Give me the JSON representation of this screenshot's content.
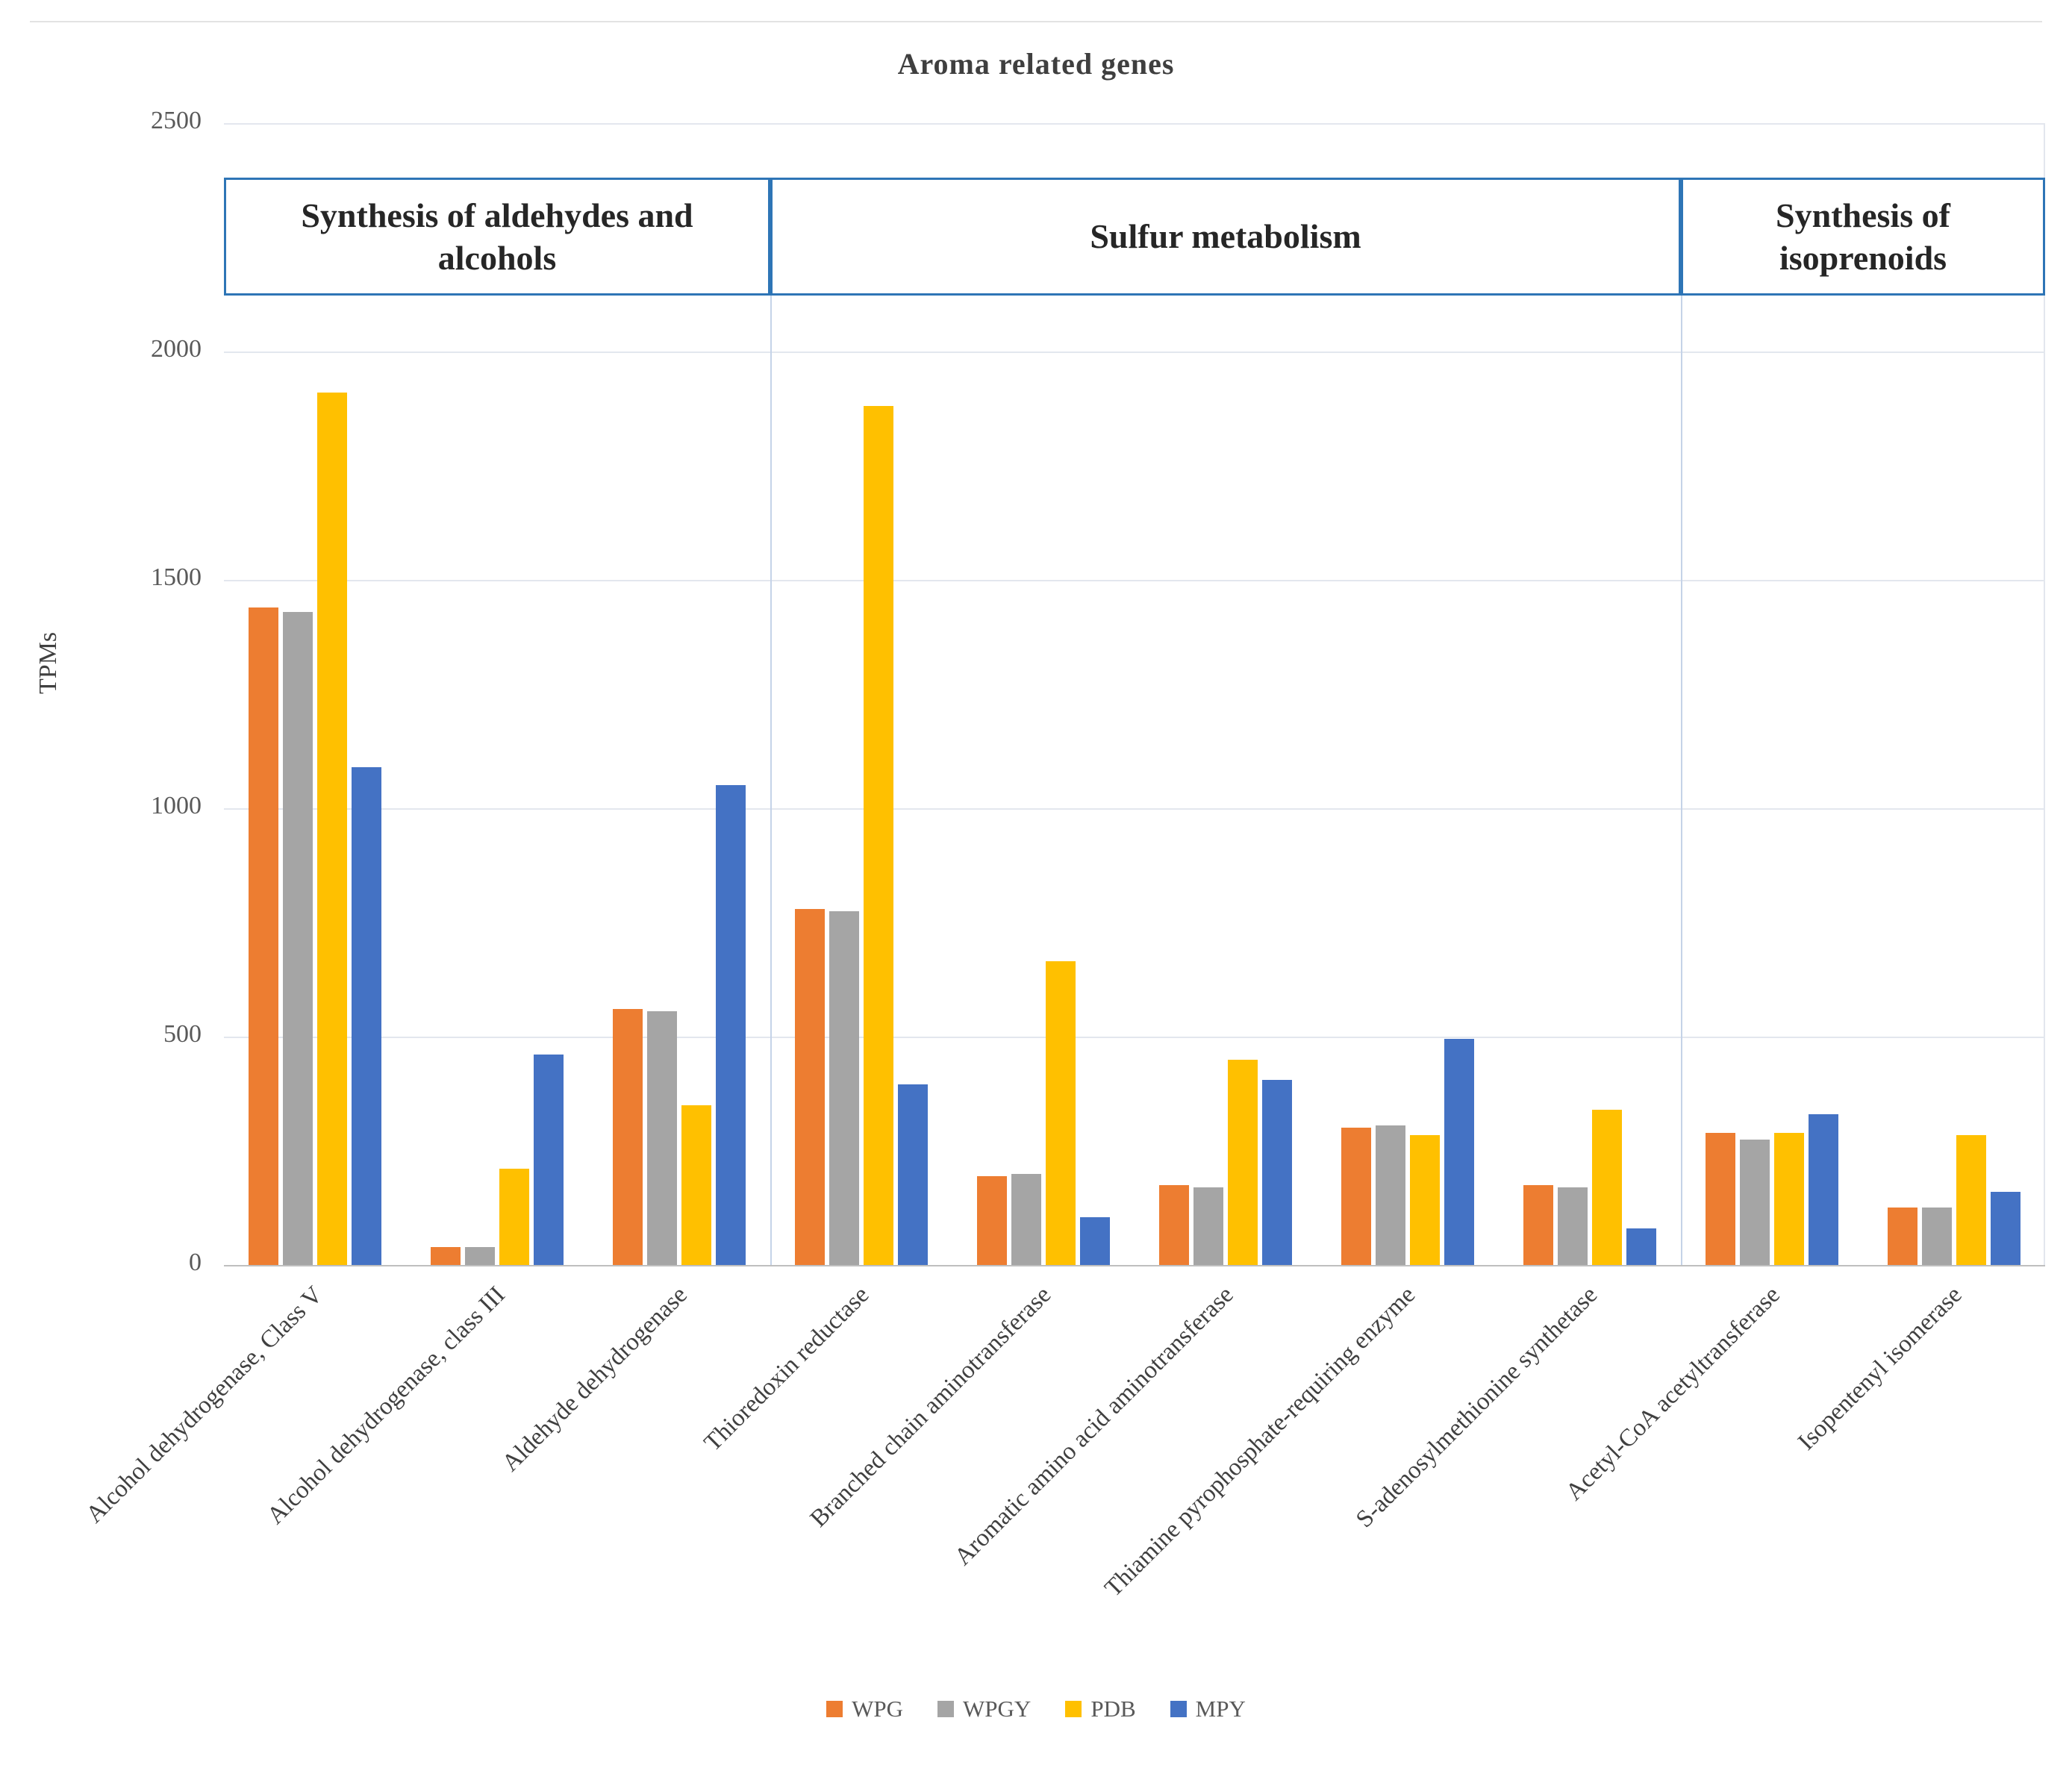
{
  "title": "Aroma related genes",
  "y_axis_title": "TPMs",
  "sections": [
    {
      "label": "Synthesis of aldehydes and alcohols",
      "span": 3
    },
    {
      "label": "Sulfur metabolism",
      "span": 5
    },
    {
      "label": "Synthesis of isoprenoids",
      "span": 2
    }
  ],
  "chart_data": {
    "type": "bar",
    "title": "Aroma related genes",
    "ylabel": "TPMs",
    "xlabel": "",
    "ylim": [
      0,
      2500
    ],
    "yticks": [
      0,
      500,
      1000,
      1500,
      2000,
      2500
    ],
    "grid": true,
    "legend_position": "bottom",
    "categories": [
      "Alcohol dehydrogenase, Class V",
      "Alcohol dehydrogenase, class III",
      "Aldehyde dehydrogenase",
      "Thioredoxin reductase",
      "Branched chain aminotransferase",
      "Aromatic amino acid aminotransferase",
      "Thiamine pyrophosphate-requiring enzyme",
      "S-adenosylmethionine synthetase",
      "Acetyl-CoA acetyltransferase",
      "Isopentenyl isomerase"
    ],
    "series": [
      {
        "name": "WPG",
        "color": "#ED7D31",
        "values": [
          1440,
          40,
          560,
          780,
          195,
          175,
          300,
          175,
          290,
          125
        ]
      },
      {
        "name": "WPGY",
        "color": "#A5A5A5",
        "values": [
          1430,
          40,
          555,
          775,
          200,
          170,
          305,
          170,
          275,
          125
        ]
      },
      {
        "name": "PDB",
        "color": "#FFC000",
        "values": [
          1910,
          210,
          350,
          1880,
          665,
          450,
          285,
          340,
          290,
          285
        ]
      },
      {
        "name": "MPY",
        "color": "#4472C4",
        "values": [
          1090,
          460,
          1050,
          395,
          105,
          405,
          495,
          80,
          330,
          160
        ]
      }
    ]
  },
  "colors": {
    "section_border": "#2e75b6",
    "gridline": "#e3e7ee",
    "axis": "#bfbfbf"
  }
}
